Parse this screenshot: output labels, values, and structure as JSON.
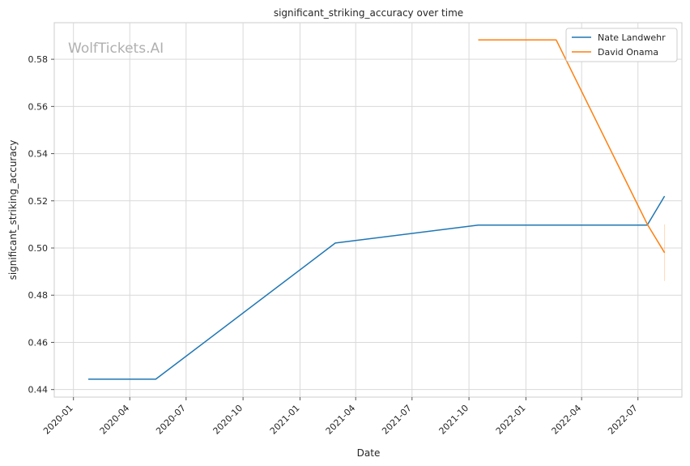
{
  "chart_data": {
    "type": "line",
    "title": "significant_striking_accuracy over time",
    "xlabel": "Date",
    "ylabel": "significant_striking_accuracy",
    "watermark": "WolfTickets.AI",
    "x_ticks": [
      "2020-01",
      "2020-04",
      "2020-07",
      "2020-10",
      "2021-01",
      "2021-04",
      "2021-07",
      "2021-10",
      "2022-01",
      "2022-04",
      "2022-07"
    ],
    "y_ticks": [
      "0.44",
      "0.46",
      "0.48",
      "0.50",
      "0.52",
      "0.54",
      "0.56",
      "0.58"
    ],
    "xlim": [
      "2019-12-01",
      "2022-09-10"
    ],
    "ylim": [
      0.4368,
      0.5955
    ],
    "grid": true,
    "legend_position": "top-right",
    "series": [
      {
        "name": "Nate Landwehr",
        "color": "#1f77b4",
        "points": [
          {
            "x": "2020-01-25",
            "y": 0.4444
          },
          {
            "x": "2020-05-13",
            "y": 0.4444
          },
          {
            "x": "2021-02-27",
            "y": 0.5021
          },
          {
            "x": "2021-10-16",
            "y": 0.5097
          },
          {
            "x": "2022-07-16",
            "y": 0.5097
          },
          {
            "x": "2022-08-13",
            "y": 0.522
          }
        ]
      },
      {
        "name": "David Onama",
        "color": "#ff7f0e",
        "points": [
          {
            "x": "2021-10-16",
            "y": 0.5882
          },
          {
            "x": "2022-02-19",
            "y": 0.5882
          },
          {
            "x": "2022-07-16",
            "y": 0.5101
          },
          {
            "x": "2022-08-13",
            "y": 0.498
          }
        ],
        "error_band": {
          "x": "2022-08-13",
          "low": 0.486,
          "high": 0.51
        }
      }
    ]
  }
}
